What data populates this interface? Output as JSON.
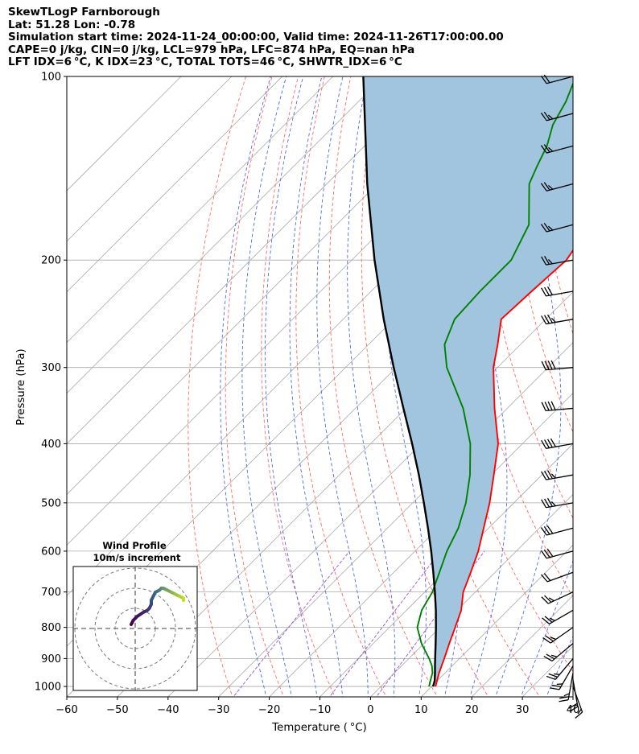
{
  "header": {
    "line1": "SkewTLogP Farnborough",
    "line2": "Lat: 51.28   Lon: -0.78",
    "line3": "Simulation start time: 2024-11-24_00:00:00, Valid time: 2024-11-26T17:00:00.00",
    "line4": "CAPE=0 j/kg, CIN=0 j/kg, LCL=979 hPa, LFC=874 hPa, EQ=nan hPa",
    "line5": "LFT IDX=6 °C, K IDX=23 °C, TOTAL TOTS=46 °C, SHWTR_IDX=6 °C"
  },
  "chart_data": {
    "type": "line",
    "xlabel": "Temperature ( °C)",
    "ylabel": "Pressure (hPa)",
    "xlim": [
      -60,
      40
    ],
    "ylim": [
      1040,
      100
    ],
    "y_scale": "log",
    "x_ticks": [
      "−60",
      "−50",
      "−40",
      "−30",
      "−20",
      "−10",
      "0",
      "10",
      "20",
      "30",
      "40"
    ],
    "y_ticks": [
      "1000",
      "900",
      "800",
      "700",
      "600",
      "500",
      "400",
      "300",
      "200",
      "100"
    ],
    "series": [
      {
        "key": "temperature",
        "color": "#ff0000",
        "pressure": [
          1000,
          975,
          950,
          925,
          900,
          850,
          800,
          750,
          700,
          650,
          600,
          550,
          500,
          450,
          400,
          350,
          300,
          275,
          250,
          225,
          200,
          175,
          150,
          140,
          130,
          125,
          120,
          110,
          100
        ],
        "values": [
          10.8,
          9.8,
          8.8,
          7.9,
          7,
          5,
          3,
          0.8,
          -2.4,
          -4.8,
          -7.5,
          -11,
          -14.8,
          -19.5,
          -24.8,
          -32.5,
          -40.8,
          -44.5,
          -48.8,
          -48.3,
          -47.6,
          -49.8,
          -55.6,
          -54.8,
          -55,
          -56,
          -58.5,
          -60,
          -61.5
        ]
      },
      {
        "key": "dewpoint",
        "color": "#008000",
        "pressure": [
          1000,
          975,
          950,
          925,
          900,
          850,
          800,
          750,
          700,
          650,
          600,
          550,
          500,
          450,
          400,
          350,
          300,
          275,
          250,
          225,
          200,
          175,
          150,
          140,
          130,
          120,
          110,
          100
        ],
        "values": [
          9.5,
          8.5,
          7.5,
          6,
          4,
          -0.5,
          -4.5,
          -7,
          -8.5,
          -11,
          -13.7,
          -16,
          -19.5,
          -24.2,
          -30.3,
          -38.7,
          -50,
          -55,
          -58,
          -58.5,
          -58.5,
          -62,
          -70,
          -72,
          -74,
          -77,
          -79,
          -82
        ]
      },
      {
        "key": "parcel",
        "color": "#000000",
        "pressure": [
          1000,
          979,
          950,
          925,
          900,
          850,
          800,
          750,
          700,
          650,
          600,
          550,
          500,
          450,
          400,
          350,
          300,
          250,
          200,
          150,
          100
        ],
        "values": [
          10.3,
          9.5,
          8,
          6.6,
          5.2,
          2.3,
          -0.8,
          -4.2,
          -8,
          -12.2,
          -16.8,
          -22,
          -27.8,
          -34.3,
          -41.8,
          -50.5,
          -60.5,
          -72,
          -85.5,
          -102,
          -124
        ]
      }
    ],
    "wind_barbs": {
      "pressure": [
        1000,
        975,
        950,
        925,
        900,
        850,
        800,
        750,
        700,
        650,
        600,
        550,
        500,
        450,
        400,
        350,
        300,
        250,
        225,
        200,
        175,
        150,
        130,
        115,
        100
      ],
      "speed_kt": [
        15,
        20,
        25,
        25,
        25,
        25,
        25,
        25,
        25,
        20,
        30,
        30,
        35,
        35,
        40,
        40,
        40,
        35,
        30,
        25,
        25,
        25,
        25,
        25,
        20
      ],
      "direction_deg": [
        160,
        170,
        190,
        210,
        220,
        230,
        235,
        240,
        245,
        250,
        255,
        255,
        260,
        260,
        260,
        265,
        265,
        260,
        260,
        260,
        255,
        255,
        255,
        255,
        255
      ]
    },
    "reference_lines": {
      "isotherms": "grey solid",
      "dry_adiabats": "red dashed",
      "moist_adiabats": "blue dashed",
      "mixing_ratio": "purple dashed"
    },
    "inset": {
      "title": "Wind Profile",
      "subtitle": "10m/s increment",
      "rings_m_s": [
        10,
        20,
        30
      ],
      "hodograph_u": [
        -2,
        -1,
        1,
        4,
        6,
        7,
        8,
        8,
        9,
        10,
        12,
        13,
        14,
        16,
        18,
        20,
        22,
        24,
        24
      ],
      "hodograph_v": [
        2,
        4,
        6,
        8,
        9,
        10,
        12,
        14,
        16,
        18,
        19,
        20,
        20,
        19,
        18,
        17,
        16,
        15,
        14
      ]
    }
  },
  "colors": {
    "cape_fill": "#a1c5df",
    "temperature": "#ff0000",
    "dewpoint": "#008000",
    "parcel": "#000000",
    "isotherm": "#aaaaaa",
    "dry_adiabat": "#ff6666",
    "moist_adiabat": "#5566ee",
    "mixing_ratio": "#9955cc"
  }
}
